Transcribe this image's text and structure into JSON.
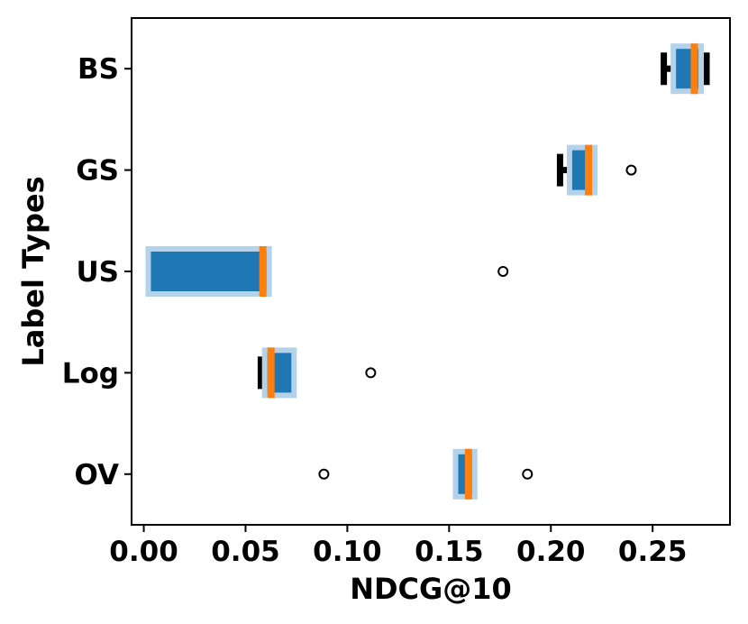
{
  "chart_data": {
    "type": "boxplot",
    "orientation": "horizontal",
    "xlabel": "NDCG@10",
    "ylabel": "Label Types",
    "xlim": [
      -0.006,
      0.288
    ],
    "x_ticks": [
      0.0,
      0.05,
      0.1,
      0.15,
      0.2,
      0.25
    ],
    "x_tick_labels": [
      "0.00",
      "0.05",
      "0.10",
      "0.15",
      "0.20",
      "0.25"
    ],
    "categories": [
      "BS",
      "GS",
      "US",
      "Log",
      "OV"
    ],
    "boxes": [
      {
        "label": "BS",
        "whisker_low": 0.2555,
        "q1": 0.2615,
        "median": 0.2705,
        "q3": 0.2725,
        "whisker_high": 0.2765,
        "outliers": []
      },
      {
        "label": "GS",
        "whisker_low": 0.2045,
        "q1": 0.2105,
        "median": 0.2185,
        "q3": 0.2185,
        "whisker_high": 0.2185,
        "outliers": [
          0.2395
        ]
      },
      {
        "label": "US",
        "whisker_low": 0.0035,
        "q1": 0.0035,
        "median": 0.0585,
        "q3": 0.0585,
        "whisker_high": 0.0585,
        "outliers": [
          0.1765
        ]
      },
      {
        "label": "Log",
        "whisker_low": 0.0575,
        "q1": 0.0625,
        "median": 0.0625,
        "q3": 0.0725,
        "whisker_high": 0.0725,
        "outliers": [
          0.1115
        ]
      },
      {
        "label": "OV",
        "whisker_low": 0.1545,
        "q1": 0.1545,
        "median": 0.1595,
        "q3": 0.1595,
        "whisker_high": 0.1595,
        "outliers": [
          0.0885,
          0.1885
        ]
      }
    ],
    "colors": {
      "box_fill": "#1f77b4",
      "box_halo": "#b4d2e9",
      "median": "#ff7f0e",
      "whisker": "#000000",
      "outlier_edge": "#000000",
      "axes": "#000000"
    }
  }
}
